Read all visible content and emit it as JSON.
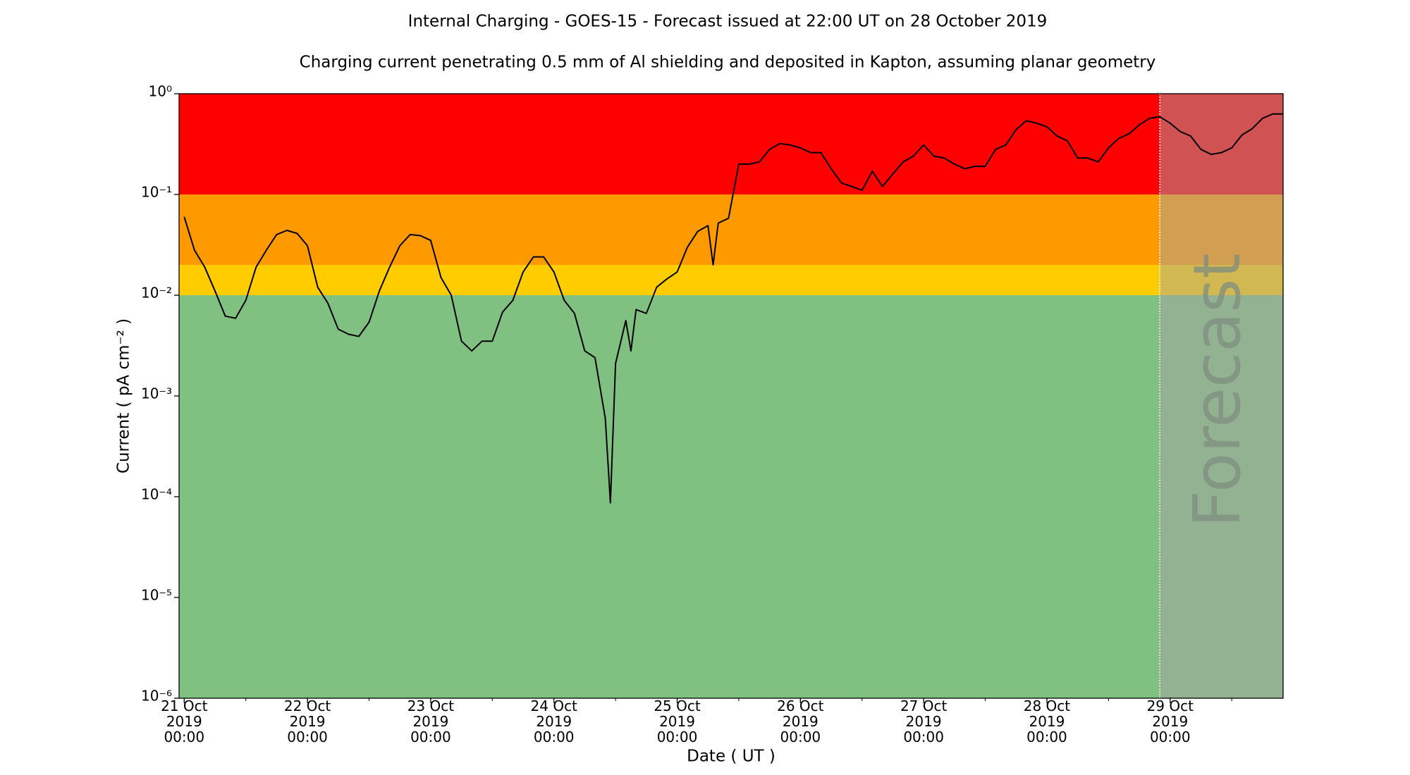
{
  "chart_data": {
    "type": "line",
    "title": "Internal Charging - GOES-15 - Forecast issued at 22:00 UT on 28 October 2019",
    "subtitle": "Charging current penetrating 0.5 mm of Al shielding and deposited in Kapton, assuming planar geometry",
    "xlabel": "Date ( UT )",
    "ylabel": "Current ( pA cm⁻² )",
    "yscale": "log",
    "xlim": [
      "2019-10-20 23:00",
      "2019-10-29 22:00"
    ],
    "ylim": [
      1e-06,
      1
    ],
    "yticks": [
      {
        "value": 1e-06,
        "label": "10⁻⁶"
      },
      {
        "value": 1e-05,
        "label": "10⁻⁵"
      },
      {
        "value": 0.0001,
        "label": "10⁻⁴"
      },
      {
        "value": 0.001,
        "label": "10⁻³"
      },
      {
        "value": 0.01,
        "label": "10⁻²"
      },
      {
        "value": 0.1,
        "label": "10⁻¹"
      },
      {
        "value": 1,
        "label": "10⁰"
      }
    ],
    "xticks": [
      {
        "value": "2019-10-21 00:00",
        "label": "21 Oct\n2019\n00:00"
      },
      {
        "value": "2019-10-22 00:00",
        "label": "22 Oct\n2019\n00:00"
      },
      {
        "value": "2019-10-23 00:00",
        "label": "23 Oct\n2019\n00:00"
      },
      {
        "value": "2019-10-24 00:00",
        "label": "24 Oct\n2019\n00:00"
      },
      {
        "value": "2019-10-25 00:00",
        "label": "25 Oct\n2019\n00:00"
      },
      {
        "value": "2019-10-26 00:00",
        "label": "26 Oct\n2019\n00:00"
      },
      {
        "value": "2019-10-27 00:00",
        "label": "27 Oct\n2019\n00:00"
      },
      {
        "value": "2019-10-28 00:00",
        "label": "28 Oct\n2019\n00:00"
      },
      {
        "value": "2019-10-29 00:00",
        "label": "29 Oct\n2019\n00:00"
      }
    ],
    "xminorticks": [
      "2019-10-21 12:00",
      "2019-10-22 12:00",
      "2019-10-23 12:00",
      "2019-10-24 12:00",
      "2019-10-25 12:00",
      "2019-10-26 12:00",
      "2019-10-27 12:00",
      "2019-10-28 12:00",
      "2019-10-29 12:00"
    ],
    "bands": [
      {
        "from": 1e-06,
        "to": 0.01,
        "color": "#80c080"
      },
      {
        "from": 0.01,
        "to": 0.02,
        "color": "#ffcc00"
      },
      {
        "from": 0.02,
        "to": 0.1,
        "color": "#ff9900"
      },
      {
        "from": 0.1,
        "to": 1,
        "color": "#ff0000"
      }
    ],
    "forecast": {
      "label": "Forecast",
      "start": "2019-10-28 22:00",
      "color": "#a4a4a4"
    },
    "color": "#000000",
    "x": [
      "2019-10-21 00:00",
      "2019-10-21 02:00",
      "2019-10-21 04:00",
      "2019-10-21 06:00",
      "2019-10-21 08:00",
      "2019-10-21 10:00",
      "2019-10-21 12:00",
      "2019-10-21 14:00",
      "2019-10-21 16:00",
      "2019-10-21 18:00",
      "2019-10-21 20:00",
      "2019-10-21 22:00",
      "2019-10-22 00:00",
      "2019-10-22 02:00",
      "2019-10-22 04:00",
      "2019-10-22 06:00",
      "2019-10-22 08:00",
      "2019-10-22 10:00",
      "2019-10-22 12:00",
      "2019-10-22 14:00",
      "2019-10-22 16:00",
      "2019-10-22 18:00",
      "2019-10-22 20:00",
      "2019-10-22 22:00",
      "2019-10-23 00:00",
      "2019-10-23 02:00",
      "2019-10-23 04:00",
      "2019-10-23 06:00",
      "2019-10-23 08:00",
      "2019-10-23 10:00",
      "2019-10-23 12:00",
      "2019-10-23 14:00",
      "2019-10-23 16:00",
      "2019-10-23 18:00",
      "2019-10-23 20:00",
      "2019-10-23 22:00",
      "2019-10-24 00:00",
      "2019-10-24 02:00",
      "2019-10-24 04:00",
      "2019-10-24 06:00",
      "2019-10-24 08:00",
      "2019-10-24 10:00",
      "2019-10-24 11:00",
      "2019-10-24 12:00",
      "2019-10-24 14:00",
      "2019-10-24 15:00",
      "2019-10-24 16:00",
      "2019-10-24 18:00",
      "2019-10-24 20:00",
      "2019-10-24 22:00",
      "2019-10-25 00:00",
      "2019-10-25 02:00",
      "2019-10-25 04:00",
      "2019-10-25 06:00",
      "2019-10-25 07:00",
      "2019-10-25 08:00",
      "2019-10-25 10:00",
      "2019-10-25 12:00",
      "2019-10-25 14:00",
      "2019-10-25 16:00",
      "2019-10-25 18:00",
      "2019-10-25 20:00",
      "2019-10-25 22:00",
      "2019-10-26 00:00",
      "2019-10-26 02:00",
      "2019-10-26 04:00",
      "2019-10-26 06:00",
      "2019-10-26 08:00",
      "2019-10-26 10:00",
      "2019-10-26 12:00",
      "2019-10-26 14:00",
      "2019-10-26 16:00",
      "2019-10-26 18:00",
      "2019-10-26 20:00",
      "2019-10-26 22:00",
      "2019-10-27 00:00",
      "2019-10-27 02:00",
      "2019-10-27 04:00",
      "2019-10-27 06:00",
      "2019-10-27 08:00",
      "2019-10-27 10:00",
      "2019-10-27 12:00",
      "2019-10-27 14:00",
      "2019-10-27 16:00",
      "2019-10-27 18:00",
      "2019-10-27 20:00",
      "2019-10-27 22:00",
      "2019-10-28 00:00",
      "2019-10-28 02:00",
      "2019-10-28 04:00",
      "2019-10-28 06:00",
      "2019-10-28 08:00",
      "2019-10-28 10:00",
      "2019-10-28 12:00",
      "2019-10-28 14:00",
      "2019-10-28 16:00",
      "2019-10-28 18:00",
      "2019-10-28 20:00",
      "2019-10-28 22:00",
      "2019-10-29 00:00",
      "2019-10-29 02:00",
      "2019-10-29 04:00",
      "2019-10-29 06:00",
      "2019-10-29 08:00",
      "2019-10-29 10:00",
      "2019-10-29 12:00",
      "2019-10-29 14:00",
      "2019-10-29 16:00",
      "2019-10-29 18:00",
      "2019-10-29 20:00",
      "2019-10-29 22:00"
    ],
    "values": [
      0.06,
      0.028,
      0.019,
      0.011,
      0.0062,
      0.0059,
      0.0089,
      0.019,
      0.028,
      0.04,
      0.044,
      0.041,
      0.031,
      0.012,
      0.0083,
      0.0046,
      0.0041,
      0.0039,
      0.0054,
      0.011,
      0.019,
      0.031,
      0.04,
      0.039,
      0.035,
      0.015,
      0.01,
      0.0035,
      0.0028,
      0.0035,
      0.0035,
      0.0068,
      0.0089,
      0.017,
      0.024,
      0.024,
      0.017,
      0.0089,
      0.0066,
      0.0028,
      0.0024,
      0.0006,
      8.7e-05,
      0.0021,
      0.0056,
      0.0028,
      0.0072,
      0.0066,
      0.012,
      0.0145,
      0.017,
      0.03,
      0.043,
      0.049,
      0.02,
      0.052,
      0.058,
      0.2,
      0.2,
      0.21,
      0.28,
      0.32,
      0.31,
      0.29,
      0.26,
      0.26,
      0.18,
      0.13,
      0.12,
      0.11,
      0.17,
      0.12,
      0.16,
      0.21,
      0.24,
      0.31,
      0.24,
      0.23,
      0.2,
      0.18,
      0.19,
      0.19,
      0.28,
      0.31,
      0.44,
      0.54,
      0.51,
      0.47,
      0.38,
      0.34,
      0.23,
      0.23,
      0.21,
      0.29,
      0.36,
      0.4,
      0.49,
      0.57,
      0.59,
      0.51,
      0.42,
      0.38,
      0.28,
      0.25,
      0.26,
      0.29,
      0.39,
      0.45,
      0.57,
      0.63,
      0.63
    ]
  }
}
